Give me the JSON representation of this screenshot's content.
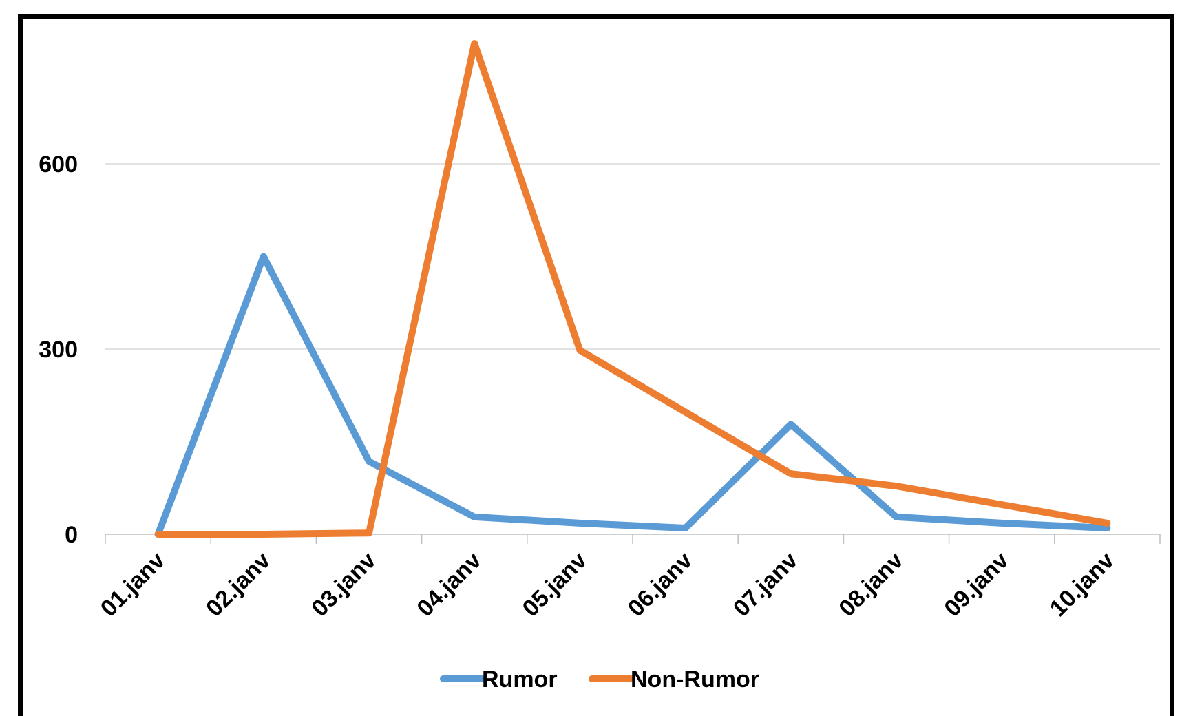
{
  "chart_data": {
    "type": "line",
    "title": "",
    "xlabel": "",
    "ylabel": "",
    "categories": [
      "01.janv",
      "02.janv",
      "03.janv",
      "04.janv",
      "05.janv",
      "06.janv",
      "07.janv",
      "08.janv",
      "09.janv",
      "10.janv"
    ],
    "yticks": [
      0,
      300,
      600
    ],
    "ytick_labels": [
      "0",
      "300",
      "600"
    ],
    "ylim": [
      0,
      800
    ],
    "grid": true,
    "legend_position": "bottom",
    "series": [
      {
        "name": "Rumor",
        "color": "#5B9BD5",
        "values": [
          0,
          450,
          118,
          28,
          18,
          10,
          178,
          28,
          18,
          10
        ]
      },
      {
        "name": "Non-Rumor",
        "color": "#ED7D31",
        "values": [
          0,
          0,
          2,
          795,
          298,
          198,
          98,
          78,
          48,
          18
        ]
      }
    ]
  }
}
